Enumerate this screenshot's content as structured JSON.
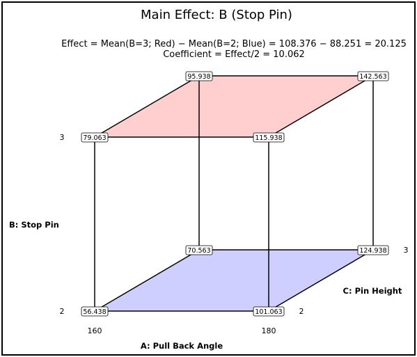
{
  "title": "Main Effect: B (Stop Pin)",
  "effect_line": "Effect = Mean(B=3; Red) − Mean(B=2; Blue) = 108.376 − 88.251 = 20.125",
  "coefficient_line": "Coefficient = Effect/2 = 10.062",
  "factors": {
    "a": {
      "label": "A: Pull Back Angle",
      "low": "160",
      "high": "180"
    },
    "b": {
      "label": "B: Stop Pin",
      "low": "2",
      "high": "3"
    },
    "c": {
      "label": "C: Pin Height",
      "low": "2",
      "high": "3"
    }
  },
  "corners": {
    "b_high": {
      "a_low_c_low": "79.063",
      "a_high_c_low": "115.938",
      "a_low_c_high": "95.938",
      "a_high_c_high": "142.563"
    },
    "b_low": {
      "a_low_c_low": "56.438",
      "a_high_c_low": "101.063",
      "a_low_c_high": "70.563",
      "a_high_c_high": "124.938"
    }
  },
  "colors": {
    "top_face": "#ffcfcf",
    "bottom_face": "#cfcfff",
    "frame": "#000000"
  }
}
